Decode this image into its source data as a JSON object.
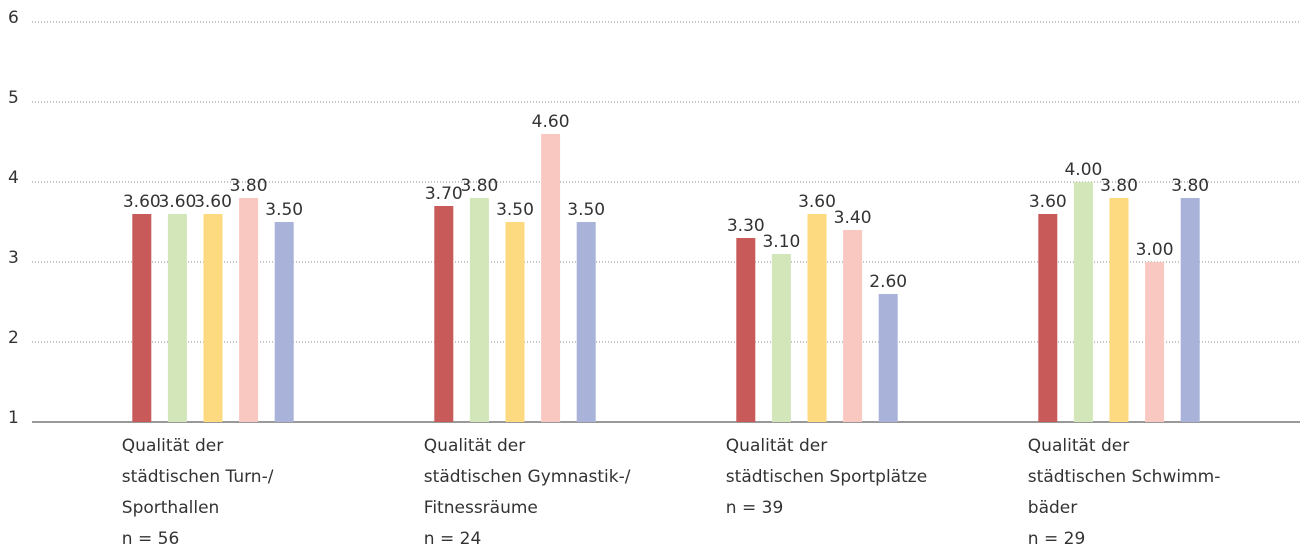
{
  "chart_data": {
    "type": "bar",
    "categories": [
      [
        "Qualität der",
        "städtischen Turn-/",
        "Sporthallen",
        "n = 56"
      ],
      [
        "Qualität der",
        "städtischen Gymnastik-/",
        "Fitnessräume",
        "n = 24"
      ],
      [
        "Qualität der",
        "städtischen Sportplätze",
        "n = 39"
      ],
      [
        "Qualität der",
        "städtischen Schwimm-",
        "bäder",
        "n = 29"
      ]
    ],
    "series": [
      {
        "color": "#c85a5a",
        "values": [
          3.6,
          3.7,
          3.3,
          3.6
        ],
        "value_labels": [
          "3.60",
          "3.70",
          "3.30",
          "3.60"
        ]
      },
      {
        "color": "#d2e6b9",
        "values": [
          3.6,
          3.8,
          3.1,
          4.0
        ],
        "value_labels": [
          "3.60",
          "3.80",
          "3.10",
          "4.00"
        ]
      },
      {
        "color": "#fdd97f",
        "values": [
          3.6,
          3.5,
          3.6,
          3.8
        ],
        "value_labels": [
          "3.60",
          "3.50",
          "3.60",
          "3.80"
        ]
      },
      {
        "color": "#f9c9c1",
        "values": [
          3.8,
          4.6,
          3.4,
          3.0
        ],
        "value_labels": [
          "3.80",
          "4.60",
          "3.40",
          "3.00"
        ]
      },
      {
        "color": "#a9b3da",
        "values": [
          3.5,
          3.5,
          2.6,
          3.8
        ],
        "value_labels": [
          "3.50",
          "3.50",
          "2.60",
          "3.80"
        ]
      }
    ],
    "ylim": [
      1,
      6
    ],
    "yticks": [
      1,
      2,
      3,
      4,
      5,
      6
    ],
    "grid": true
  }
}
